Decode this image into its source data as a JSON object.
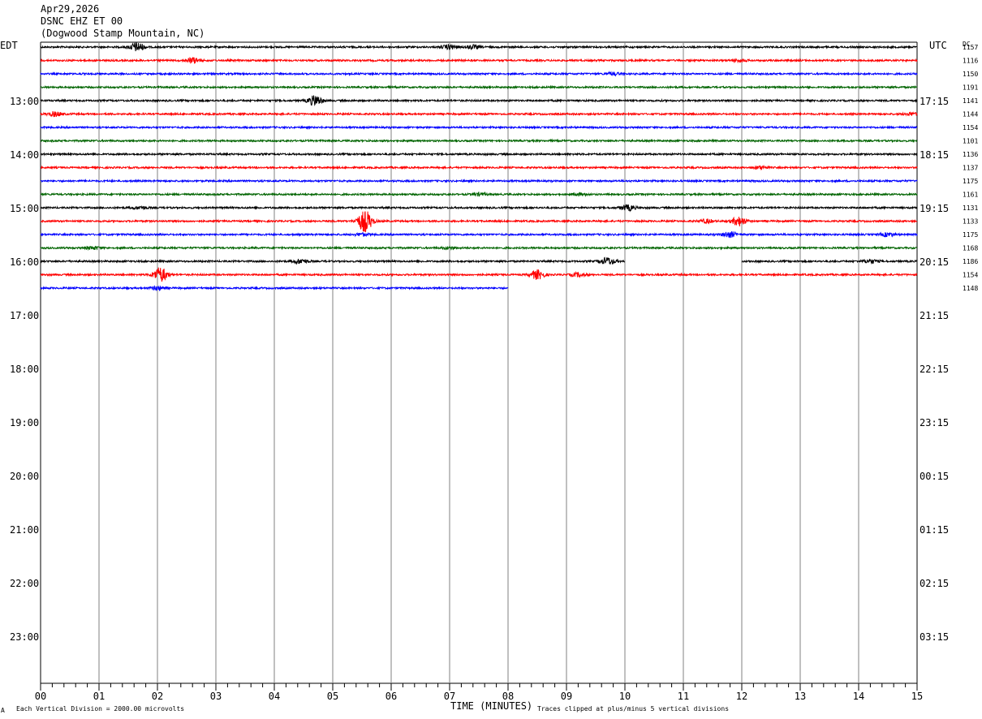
{
  "header": {
    "date": "Apr29,2026",
    "station": "DSNC EHZ ET 00",
    "location": "(Dogwood Stamp Mountain, NC)"
  },
  "chart_data": {
    "type": "helicorder",
    "left_axis_label": "EDT",
    "right_axis_label": "UTC",
    "dc_label": "DC",
    "xlabel": "TIME (MINUTES)",
    "x_range": [
      0,
      15
    ],
    "x_ticks": [
      "00",
      "01",
      "02",
      "03",
      "04",
      "05",
      "06",
      "07",
      "08",
      "09",
      "10",
      "11",
      "12",
      "13",
      "14",
      "15"
    ],
    "left_hour_labels": [
      "13:00",
      "14:00",
      "15:00",
      "16:00",
      "17:00",
      "18:00",
      "19:00",
      "20:00",
      "21:00",
      "22:00",
      "23:00"
    ],
    "right_hour_labels": [
      "17:15",
      "18:15",
      "19:15",
      "20:15",
      "21:15",
      "22:15",
      "23:15",
      "00:15",
      "01:15",
      "02:15",
      "03:15"
    ],
    "trace_colors": [
      "#000000",
      "#ff0000",
      "#0000ff",
      "#006400"
    ],
    "traces": [
      {
        "dc": "1157",
        "events": [
          [
            1.65,
            5
          ],
          [
            7.0,
            2.5
          ],
          [
            7.4,
            2
          ]
        ]
      },
      {
        "dc": "1116",
        "events": [
          [
            2.6,
            3
          ],
          [
            11.95,
            1.5
          ]
        ]
      },
      {
        "dc": "1150",
        "events": [
          [
            9.8,
            1.5
          ]
        ]
      },
      {
        "dc": "1191",
        "events": []
      },
      {
        "dc": "1141",
        "events": [
          [
            4.7,
            5.5
          ]
        ]
      },
      {
        "dc": "1144",
        "events": [
          [
            0.25,
            2.5
          ],
          [
            14.9,
            1.5
          ]
        ]
      },
      {
        "dc": "1154",
        "events": []
      },
      {
        "dc": "1101",
        "events": []
      },
      {
        "dc": "1136",
        "events": []
      },
      {
        "dc": "1137",
        "events": [
          [
            12.3,
            1.5
          ]
        ]
      },
      {
        "dc": "1175",
        "events": []
      },
      {
        "dc": "1161",
        "events": [
          [
            7.5,
            1.5
          ],
          [
            9.25,
            1.2
          ]
        ]
      },
      {
        "dc": "1131",
        "events": [
          [
            1.7,
            1.5
          ],
          [
            10.05,
            3
          ]
        ]
      },
      {
        "dc": "1133",
        "events": [
          [
            5.55,
            12
          ],
          [
            11.95,
            5
          ],
          [
            11.4,
            2
          ]
        ]
      },
      {
        "dc": "1175",
        "events": [
          [
            5.5,
            1.5
          ],
          [
            11.8,
            3
          ],
          [
            14.5,
            2
          ]
        ]
      },
      {
        "dc": "1168",
        "events": [
          [
            0.9,
            1.5
          ],
          [
            7.0,
            1.2
          ]
        ]
      },
      {
        "dc": "1186",
        "events": [
          [
            4.45,
            2.5
          ],
          [
            9.7,
            4
          ],
          [
            14.2,
            2
          ]
        ],
        "gaps": [
          [
            10.0,
            12.0
          ]
        ]
      },
      {
        "dc": "1154",
        "events": [
          [
            2.05,
            8
          ],
          [
            8.5,
            5
          ],
          [
            9.2,
            2
          ]
        ]
      },
      {
        "dc": "1148",
        "events": [
          [
            2.0,
            2
          ]
        ],
        "end": 8.0
      }
    ],
    "footer": {
      "scale_note": "Each Vertical Division = 2000.00 microvolts",
      "clip_note": "Traces clipped at plus/minus 5 vertical divisions",
      "corner_mark": "A"
    }
  }
}
